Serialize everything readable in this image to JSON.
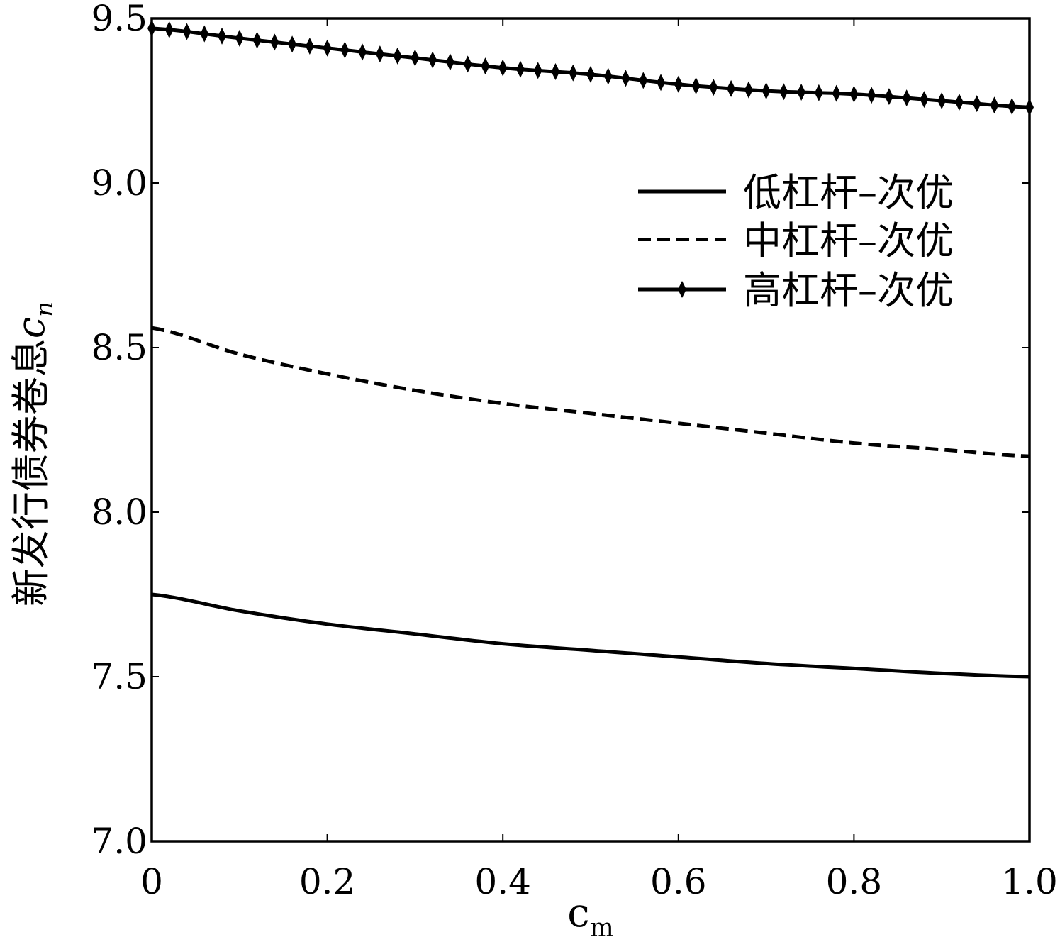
{
  "chart_data": {
    "type": "line",
    "xlabel": "c",
    "xlabel_sub": "m",
    "ylabel": "新发行债券卷息",
    "ylabel_var": "c",
    "ylabel_sub": "n",
    "xlim": [
      0,
      1.0
    ],
    "ylim": [
      7.0,
      9.5
    ],
    "x_ticks": [
      0,
      0.2,
      0.4,
      0.6,
      0.8,
      1.0
    ],
    "x_tick_labels": [
      "0",
      "0.2",
      "0.4",
      "0.6",
      "0.8",
      "1.0"
    ],
    "y_ticks": [
      7.0,
      7.5,
      8.0,
      8.5,
      9.0,
      9.5
    ],
    "y_tick_labels": [
      "7.0",
      "7.5",
      "8.0",
      "8.5",
      "9.0",
      "9.5"
    ],
    "grid": false,
    "legend_position": "upper-right",
    "x": [
      0,
      0.1,
      0.2,
      0.3,
      0.4,
      0.5,
      0.6,
      0.7,
      0.8,
      0.9,
      1.0
    ],
    "series": [
      {
        "name": "低杠杆–次优",
        "style": "solid",
        "values": [
          7.75,
          7.7,
          7.66,
          7.63,
          7.6,
          7.58,
          7.56,
          7.54,
          7.525,
          7.51,
          7.5
        ]
      },
      {
        "name": "中杠杆–次优",
        "style": "dashed",
        "values": [
          8.56,
          8.48,
          8.42,
          8.37,
          8.33,
          8.3,
          8.27,
          8.24,
          8.21,
          8.19,
          8.17
        ]
      },
      {
        "name": "高杠杆–次优",
        "style": "solid-diamond",
        "values": [
          9.47,
          9.44,
          9.41,
          9.38,
          9.35,
          9.33,
          9.3,
          9.28,
          9.27,
          9.25,
          9.23
        ]
      }
    ]
  }
}
